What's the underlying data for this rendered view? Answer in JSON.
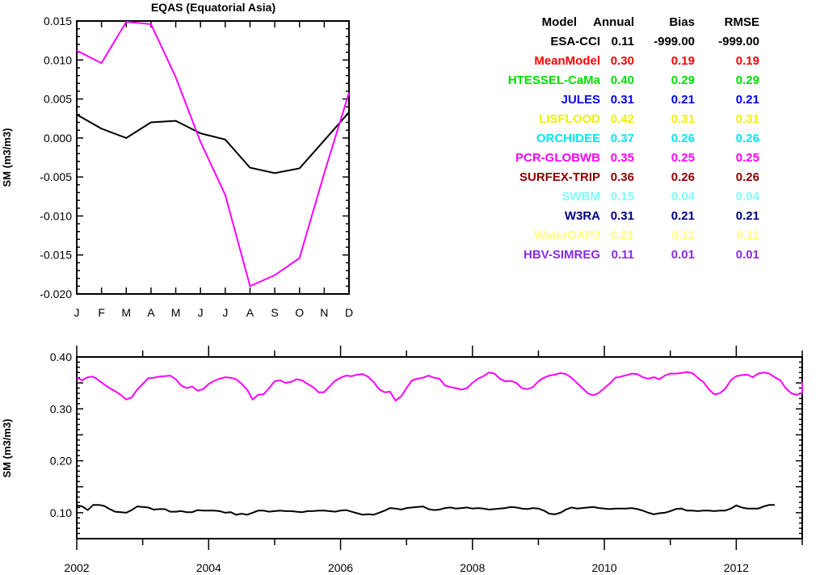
{
  "chart_data": [
    {
      "type": "line",
      "title": "EQAS (Equatorial Asia)",
      "ylabel": "SM (m3/m3)",
      "xlabel": "",
      "categories": [
        "J",
        "F",
        "M",
        "A",
        "M",
        "J",
        "J",
        "A",
        "S",
        "O",
        "N",
        "D"
      ],
      "ylim": [
        -0.02,
        0.015
      ],
      "yticks": [
        "0.015",
        "0.010",
        "0.005",
        "0.000",
        "-0.005",
        "-0.010",
        "-0.015",
        "-0.020"
      ],
      "ytick_values": [
        0.015,
        0.01,
        0.005,
        0.0,
        -0.005,
        -0.01,
        -0.015,
        -0.02
      ],
      "series": [
        {
          "color": "#000000",
          "values": [
            0.003,
            0.0012,
            0.0,
            0.002,
            0.0022,
            0.0006,
            -0.0002,
            -0.0038,
            -0.0045,
            -0.0039,
            -0.0003,
            0.0033
          ]
        },
        {
          "color": "#ff00ff",
          "values": [
            0.0112,
            0.0096,
            0.0149,
            0.0146,
            0.0078,
            -0.0005,
            -0.0073,
            -0.019,
            -0.0176,
            -0.0154,
            -0.0045,
            0.0058
          ]
        }
      ]
    },
    {
      "type": "line",
      "title": "",
      "ylabel": "SM (m3/m3)",
      "xlabel": "",
      "xlim": [
        2002,
        2013
      ],
      "ylim": [
        0.05,
        0.4
      ],
      "xticks": [
        "2002",
        "2004",
        "2006",
        "2008",
        "2010",
        "2012"
      ],
      "xtick_values": [
        2002,
        2004,
        2006,
        2008,
        2010,
        2012
      ],
      "yticks": [
        "0.40",
        "0.30",
        "0.20",
        "0.10"
      ],
      "ytick_values": [
        0.4,
        0.3,
        0.2,
        0.1
      ],
      "series": [
        {
          "color": "#000000",
          "x_start": 2002,
          "step": 0.0833333,
          "values": [
            0.114,
            0.112,
            0.105,
            0.115,
            0.115,
            0.113,
            0.107,
            0.102,
            0.101,
            0.1,
            0.105,
            0.112,
            0.111,
            0.11,
            0.106,
            0.107,
            0.107,
            0.102,
            0.102,
            0.103,
            0.101,
            0.101,
            0.105,
            0.104,
            0.104,
            0.104,
            0.103,
            0.1,
            0.101,
            0.096,
            0.098,
            0.096,
            0.1,
            0.104,
            0.104,
            0.102,
            0.103,
            0.104,
            0.103,
            0.103,
            0.102,
            0.101,
            0.103,
            0.103,
            0.104,
            0.104,
            0.103,
            0.102,
            0.104,
            0.105,
            0.102,
            0.099,
            0.096,
            0.097,
            0.096,
            0.1,
            0.104,
            0.109,
            0.108,
            0.106,
            0.109,
            0.11,
            0.111,
            0.112,
            0.107,
            0.105,
            0.106,
            0.109,
            0.11,
            0.108,
            0.109,
            0.11,
            0.108,
            0.109,
            0.108,
            0.106,
            0.107,
            0.108,
            0.109,
            0.111,
            0.11,
            0.108,
            0.107,
            0.109,
            0.108,
            0.104,
            0.098,
            0.097,
            0.1,
            0.106,
            0.11,
            0.108,
            0.109,
            0.11,
            0.111,
            0.109,
            0.108,
            0.107,
            0.108,
            0.108,
            0.108,
            0.109,
            0.107,
            0.104,
            0.1,
            0.097,
            0.099,
            0.1,
            0.103,
            0.107,
            0.108,
            0.104,
            0.104,
            0.103,
            0.104,
            0.104,
            0.103,
            0.104,
            0.104,
            0.108,
            0.114,
            0.11,
            0.108,
            0.108,
            0.108,
            0.112,
            0.115,
            0.115
          ]
        },
        {
          "color": "#ff00ff",
          "x_start": 2002,
          "step": 0.0833333,
          "values": [
            0.36,
            0.355,
            0.361,
            0.362,
            0.355,
            0.347,
            0.34,
            0.334,
            0.327,
            0.318,
            0.322,
            0.337,
            0.348,
            0.359,
            0.36,
            0.362,
            0.363,
            0.364,
            0.357,
            0.345,
            0.34,
            0.343,
            0.335,
            0.338,
            0.348,
            0.354,
            0.358,
            0.361,
            0.36,
            0.357,
            0.348,
            0.337,
            0.318,
            0.327,
            0.328,
            0.34,
            0.353,
            0.355,
            0.35,
            0.352,
            0.357,
            0.355,
            0.348,
            0.342,
            0.332,
            0.332,
            0.343,
            0.354,
            0.36,
            0.364,
            0.363,
            0.366,
            0.367,
            0.362,
            0.352,
            0.338,
            0.332,
            0.333,
            0.316,
            0.324,
            0.34,
            0.355,
            0.358,
            0.36,
            0.364,
            0.36,
            0.358,
            0.345,
            0.342,
            0.34,
            0.337,
            0.34,
            0.35,
            0.358,
            0.363,
            0.37,
            0.368,
            0.358,
            0.353,
            0.354,
            0.35,
            0.34,
            0.338,
            0.342,
            0.353,
            0.36,
            0.364,
            0.366,
            0.369,
            0.367,
            0.36,
            0.35,
            0.34,
            0.33,
            0.326,
            0.331,
            0.34,
            0.349,
            0.36,
            0.362,
            0.365,
            0.368,
            0.367,
            0.361,
            0.358,
            0.361,
            0.357,
            0.364,
            0.368,
            0.368,
            0.369,
            0.371,
            0.369,
            0.36,
            0.352,
            0.338,
            0.328,
            0.33,
            0.339,
            0.355,
            0.363,
            0.365,
            0.366,
            0.361,
            0.368,
            0.37,
            0.368,
            0.361,
            0.355,
            0.34,
            0.33,
            0.327,
            0.331,
            0.34,
            0.352,
            0.352
          ]
        }
      ]
    }
  ],
  "table": {
    "headers": [
      "Model",
      "Annual",
      "Bias",
      "RMSE"
    ],
    "rows": [
      {
        "model": "ESA-CCI",
        "annual": "0.11",
        "bias": "-999.00",
        "rmse": "-999.00",
        "color": "#000000"
      },
      {
        "model": "MeanModel",
        "annual": "0.30",
        "bias": "0.19",
        "rmse": "0.19",
        "color": "#ff0000"
      },
      {
        "model": "HTESSEL-CaMa",
        "annual": "0.40",
        "bias": "0.29",
        "rmse": "0.29",
        "color": "#00e000"
      },
      {
        "model": "JULES",
        "annual": "0.31",
        "bias": "0.21",
        "rmse": "0.21",
        "color": "#0000ff"
      },
      {
        "model": "LISFLOOD",
        "annual": "0.42",
        "bias": "0.31",
        "rmse": "0.31",
        "color": "#f0f000"
      },
      {
        "model": "ORCHIDEE",
        "annual": "0.37",
        "bias": "0.26",
        "rmse": "0.26",
        "color": "#00e8f0"
      },
      {
        "model": "PCR-GLOBWB",
        "annual": "0.35",
        "bias": "0.25",
        "rmse": "0.25",
        "color": "#ff00ff"
      },
      {
        "model": "SURFEX-TRIP",
        "annual": "0.36",
        "bias": "0.26",
        "rmse": "0.26",
        "color": "#8b0000"
      },
      {
        "model": "SWBM",
        "annual": "0.15",
        "bias": "0.04",
        "rmse": "0.04",
        "color": "#80ffff"
      },
      {
        "model": "W3RA",
        "annual": "0.31",
        "bias": "0.21",
        "rmse": "0.21",
        "color": "#000080"
      },
      {
        "model": "WaterGAP3",
        "annual": "0.21",
        "bias": "0.11",
        "rmse": "0.11",
        "color": "#ffff80"
      },
      {
        "model": "HBV-SIMREG",
        "annual": "0.11",
        "bias": "0.01",
        "rmse": "0.01",
        "color": "#8a2be2"
      }
    ]
  }
}
